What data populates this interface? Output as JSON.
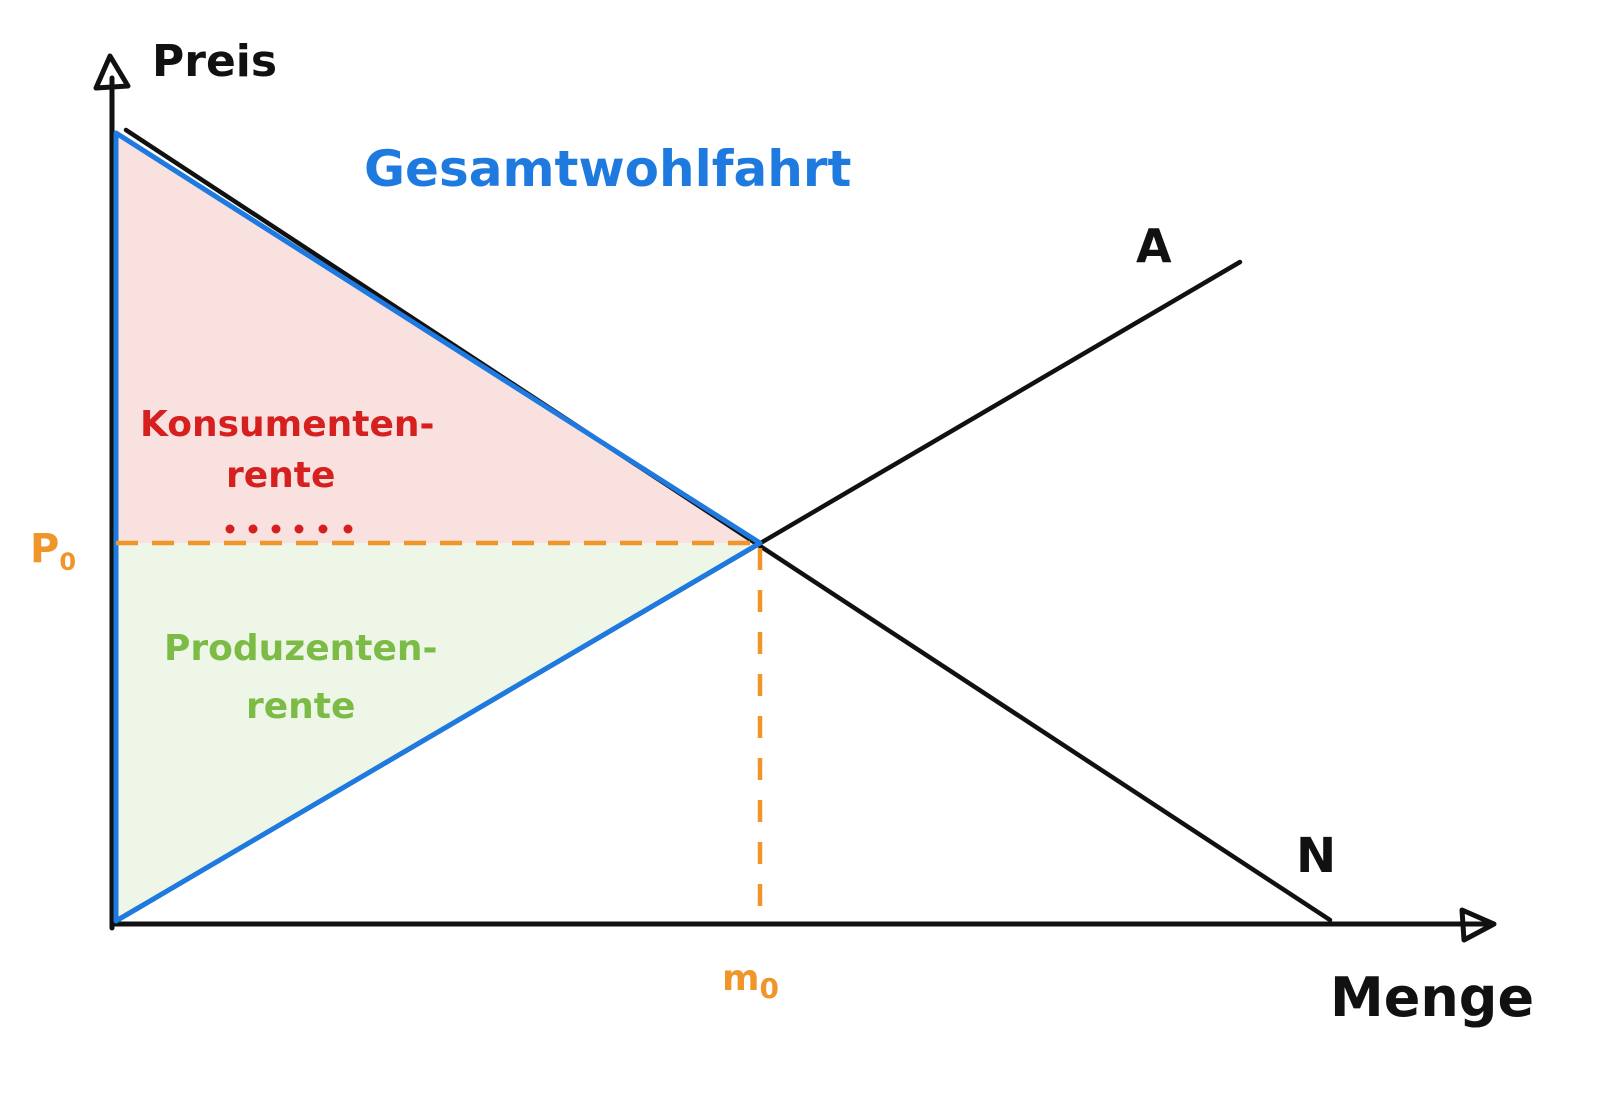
{
  "labels": {
    "y_axis": "Preis",
    "x_axis": "Menge",
    "supply": "A",
    "demand": "N",
    "price_eq": "P",
    "price_eq_sub": "0",
    "qty_eq": "m",
    "qty_eq_sub": "0",
    "total_welfare": "Gesamtwohlfahrt",
    "consumer_surplus_1": "Konsumenten-",
    "consumer_surplus_2": "rente",
    "producer_surplus_1": "Produzenten-",
    "producer_surplus_2": "rente"
  },
  "colors": {
    "axis": "#111111",
    "curves": "#111111",
    "welfare_outline": "#1f7ae0",
    "consumer_fill": "#f9e1e0",
    "producer_fill": "#eef6e8",
    "equilibrium_guides": "#f0952a",
    "consumer_text": "#d61f1f",
    "producer_text": "#7dbb47",
    "welfare_text": "#1f7ae0"
  }
}
